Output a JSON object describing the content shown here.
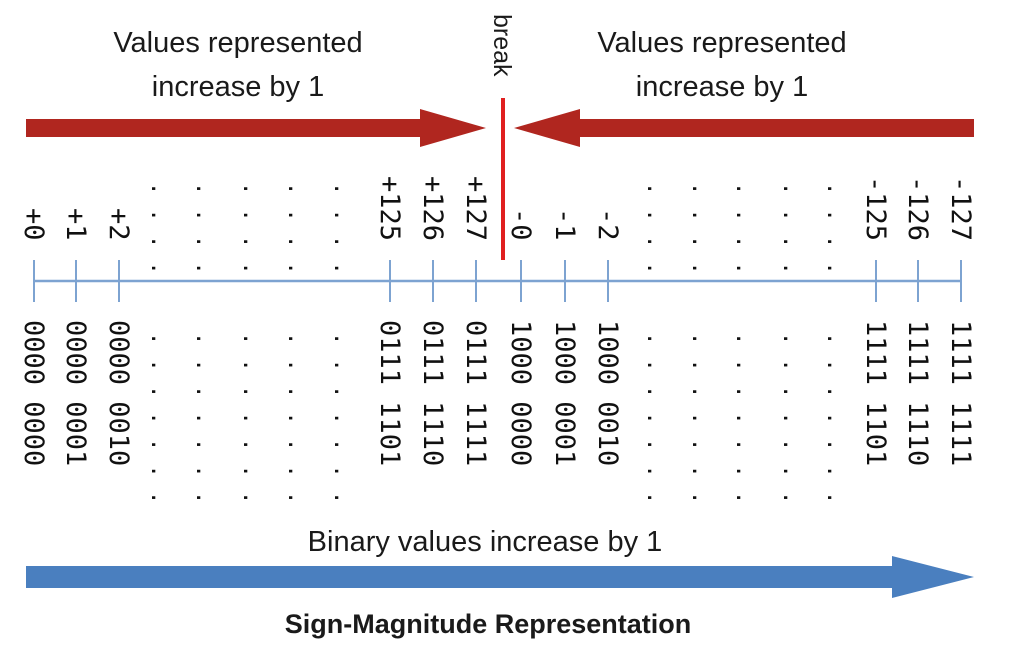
{
  "title": "Sign-Magnitude Representation",
  "left_caption": [
    "Values represented",
    "increase by 1"
  ],
  "right_caption": [
    "Values represented",
    "increase by 1"
  ],
  "break_label": "break",
  "bottom_caption": "Binary values increase by 1",
  "dots": ". . . . . .",
  "colors": {
    "red_arrow": "#b0261f",
    "break_line": "#e02020",
    "blue_arrow": "#4a7fbf",
    "axis": "#7da3d1"
  },
  "ticks": [
    {
      "value": "+0",
      "binary": "0000 0000"
    },
    {
      "value": "+1",
      "binary": "0000 0001"
    },
    {
      "value": "+2",
      "binary": "0000 0010"
    },
    {
      "value": "+125",
      "binary": "0111 1101"
    },
    {
      "value": "+126",
      "binary": "0111 1110"
    },
    {
      "value": "+127",
      "binary": "0111 1111"
    },
    {
      "value": "-0",
      "binary": "1000 0000"
    },
    {
      "value": "-1",
      "binary": "1000 0001"
    },
    {
      "value": "-2",
      "binary": "1000 0010"
    },
    {
      "value": "-125",
      "binary": "1111 1101"
    },
    {
      "value": "-126",
      "binary": "1111 1110"
    },
    {
      "value": "-127",
      "binary": "1111 1111"
    }
  ]
}
